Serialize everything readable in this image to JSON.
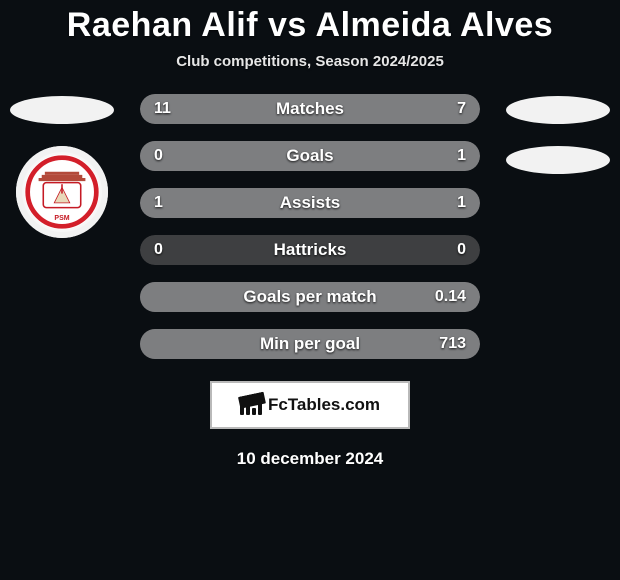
{
  "title": "Raehan Alif vs Almeida Alves",
  "subtitle": "Club competitions, Season 2024/2025",
  "fctables_label": "FcTables.com",
  "footer_date": "10 december 2024",
  "colors": {
    "background": "#0a0e12",
    "track": "#3e3f41",
    "left_fill": "#7d7e80",
    "right_fill": "#7d7e80",
    "text": "#ffffff",
    "badge_bg": "#ffffff",
    "badge_border": "#b9b9b9"
  },
  "club_badge": {
    "outer": "#ffffff",
    "ring": "#d31f2a",
    "inner_bg": "#f6f6f6",
    "text_color": "#c51a24"
  },
  "rows": [
    {
      "label": "Matches",
      "left": "11",
      "right": "7",
      "left_pct": 61,
      "right_pct": 39
    },
    {
      "label": "Goals",
      "left": "0",
      "right": "1",
      "left_pct": 0,
      "right_pct": 100
    },
    {
      "label": "Assists",
      "left": "1",
      "right": "1",
      "left_pct": 50,
      "right_pct": 50
    },
    {
      "label": "Hattricks",
      "left": "0",
      "right": "0",
      "left_pct": 0,
      "right_pct": 0
    },
    {
      "label": "Goals per match",
      "left": "",
      "right": "0.14",
      "left_pct": 0,
      "right_pct": 100
    },
    {
      "label": "Min per goal",
      "left": "",
      "right": "713",
      "left_pct": 0,
      "right_pct": 100
    }
  ]
}
